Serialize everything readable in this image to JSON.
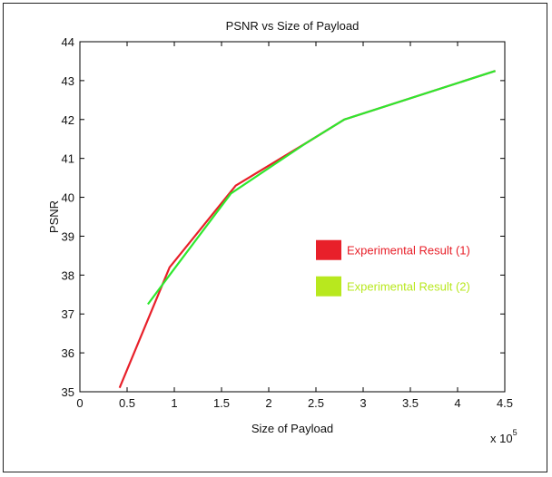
{
  "chart_data": {
    "type": "line",
    "title": "PSNR vs Size of Payload",
    "xlabel": "Size of Payload",
    "ylabel": "PSNR",
    "x_multiplier": "x 10",
    "x_multiplier_exp": "5",
    "xlim": [
      0,
      4.5
    ],
    "ylim": [
      35,
      44
    ],
    "xticks": [
      "0",
      "0.5",
      "1",
      "1.5",
      "2",
      "2.5",
      "3",
      "3.5",
      "4",
      "4.5"
    ],
    "yticks": [
      "35",
      "36",
      "37",
      "38",
      "39",
      "40",
      "41",
      "42",
      "43",
      "44"
    ],
    "grid": false,
    "legend_position": "center-right",
    "series": [
      {
        "name": "Experimental Result (1)",
        "color": "#e8202a",
        "x": [
          0.42,
          0.95,
          1.65,
          2.4,
          2.8,
          4.4
        ],
        "y": [
          35.1,
          38.2,
          40.3,
          41.4,
          42.0,
          43.25
        ]
      },
      {
        "name": "Experimental Result (2)",
        "color": "#2ee82e",
        "legend_color": "#b8e81e",
        "x": [
          0.72,
          0.95,
          1.6,
          2.4,
          2.8,
          4.4
        ],
        "y": [
          37.25,
          38.0,
          40.1,
          41.4,
          42.0,
          43.25
        ]
      }
    ]
  }
}
